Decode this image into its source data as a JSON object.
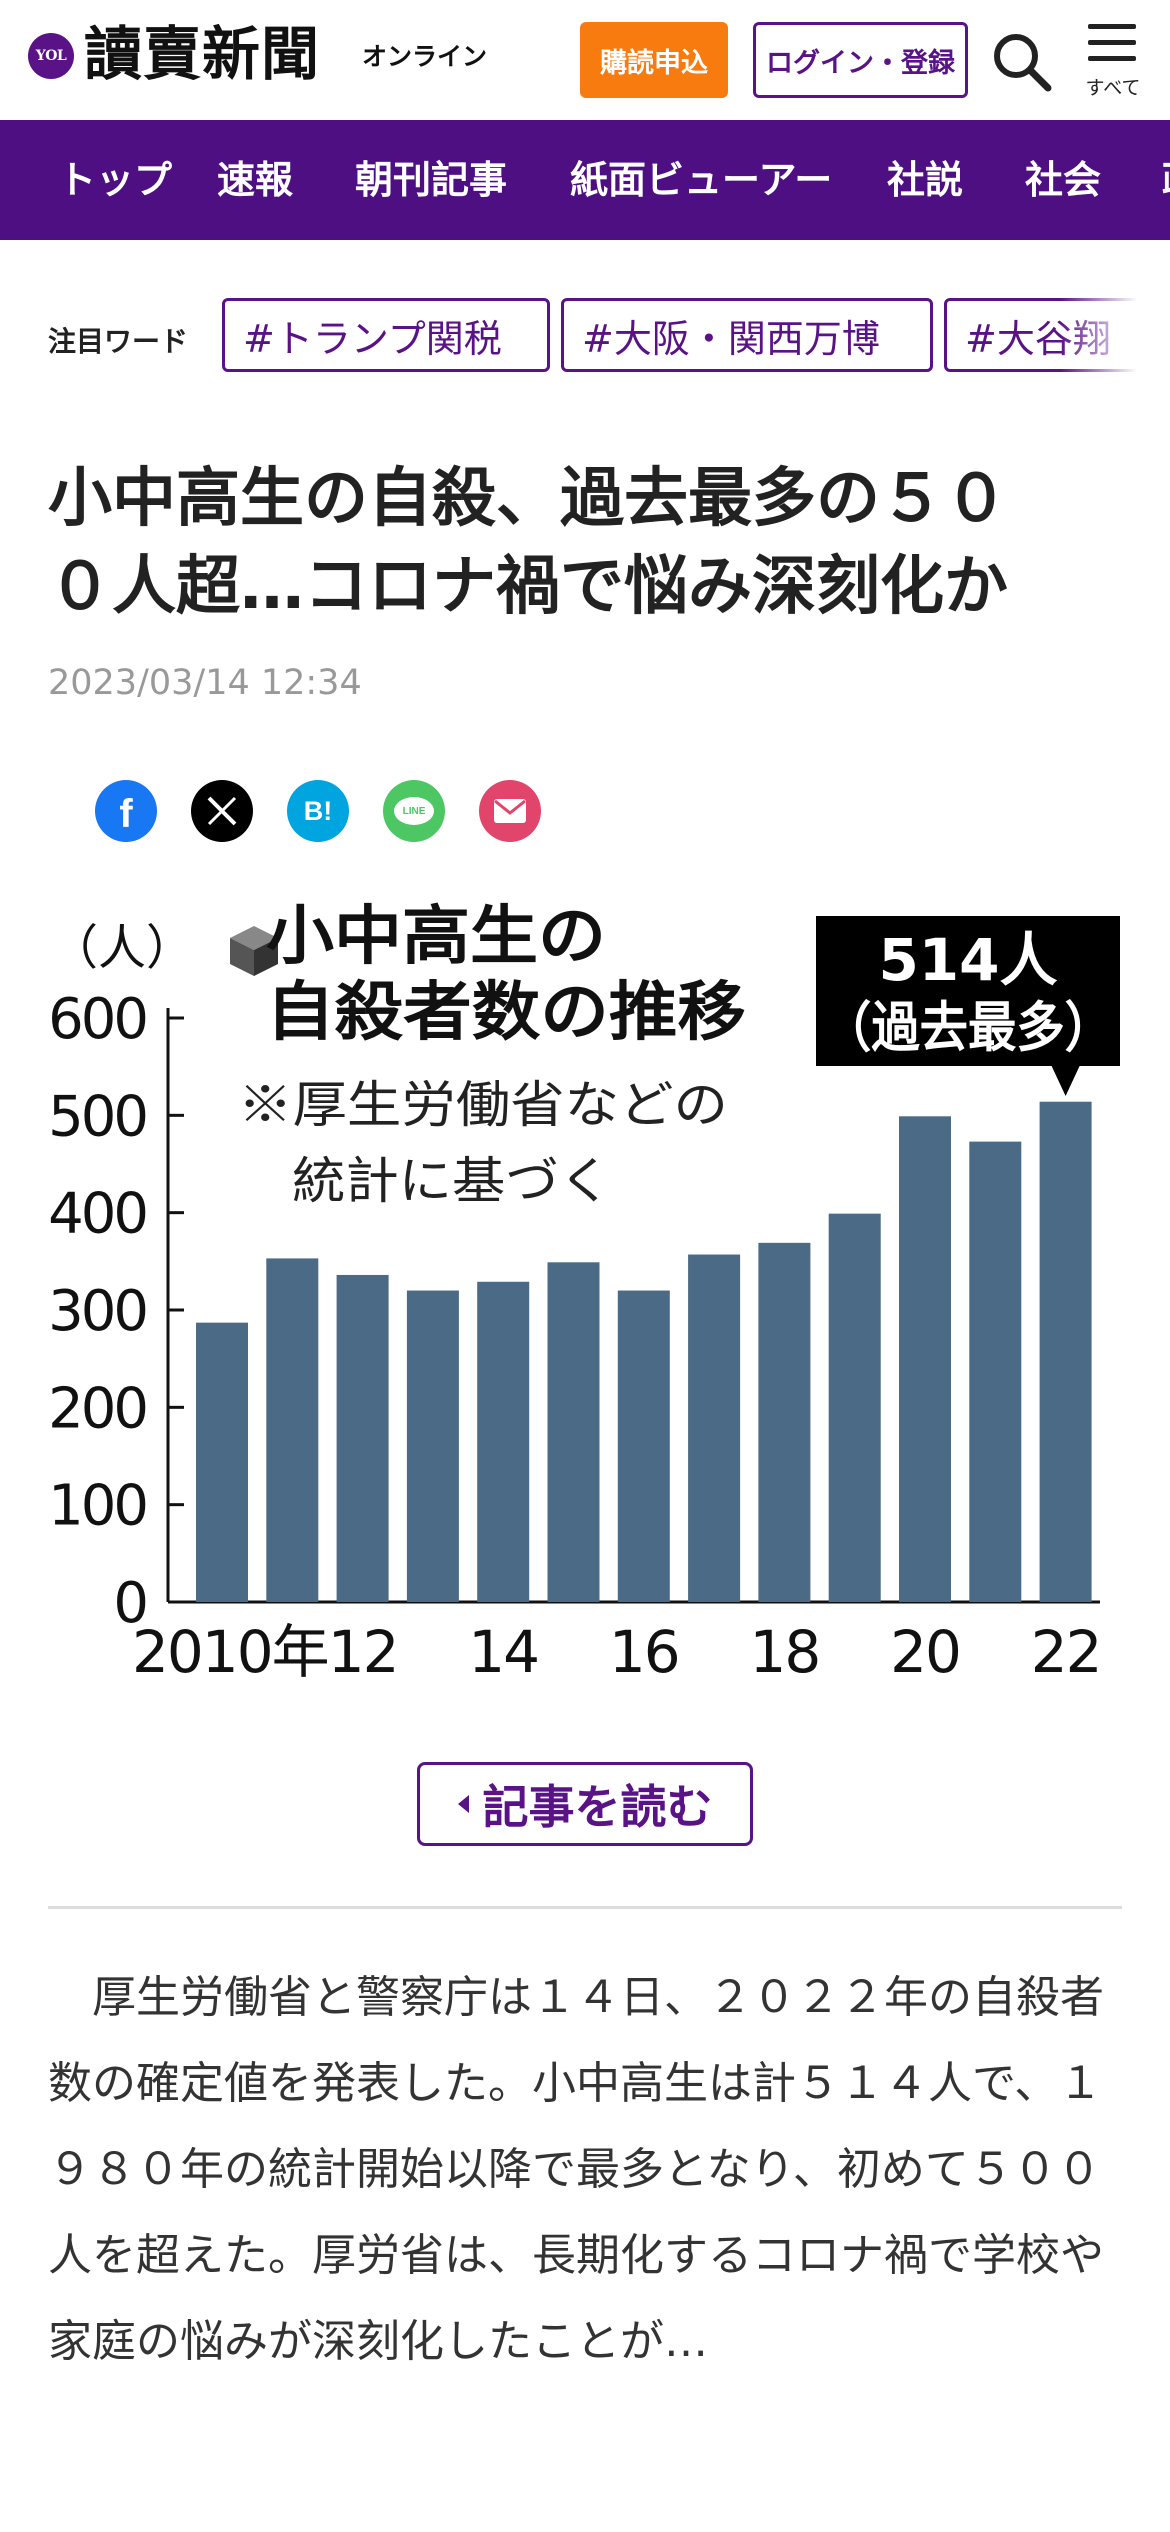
{
  "header": {
    "logo_mark": "YOL",
    "logo_text": "讀賣新聞",
    "logo_sub": "オンライン",
    "subscribe_label": "購読申込",
    "login_label": "ログイン・登録",
    "menu_label": "すべて"
  },
  "nav": {
    "items": [
      "トップ",
      "速報",
      "朝刊記事",
      "紙面ビューアー",
      "社説",
      "社会",
      "政"
    ]
  },
  "trending": {
    "label": "注目ワード",
    "tags": [
      "#トランプ関税",
      "#大阪・関西万博",
      "#大谷翔"
    ]
  },
  "article": {
    "headline_line1": "小中高生の自殺、過去最多の５０",
    "headline_line2": "０人超…コロナ禍で悩み深刻化か",
    "timestamp": "2023/03/14 12:34",
    "read_button": "記事を読む",
    "body": "　厚生労働省と警察庁は１４日、２０２２年の自殺者数の確定値を発表した。小中高生は計５１４人で、１９８０年の統計開始以降で最多となり、初めて５００人を超えた。厚労省は、長期化するコロナ禍で学校や家庭の悩みが深刻化したことが…"
  },
  "share": {
    "facebook": "f",
    "hatena": "B!",
    "line": "LINE"
  },
  "chart_data": {
    "type": "bar",
    "title": "小中高生の自殺者数の推移",
    "note_line1": "※厚生労働省などの",
    "note_line2": "統計に基づく",
    "unit_label": "（人）",
    "x": [
      2010,
      2011,
      2012,
      2013,
      2014,
      2015,
      2016,
      2017,
      2018,
      2019,
      2020,
      2021,
      2022
    ],
    "x_tick_labels": [
      "2010年",
      "12",
      "14",
      "16",
      "18",
      "20",
      "22"
    ],
    "values": [
      287,
      353,
      336,
      320,
      329,
      349,
      320,
      357,
      369,
      399,
      499,
      473,
      514
    ],
    "y_ticks": [
      "600",
      "500",
      "400",
      "300",
      "200",
      "100",
      "0"
    ],
    "ylim": [
      0,
      600
    ],
    "callout_value": "514人",
    "callout_note": "（過去最多）",
    "bar_color": "#4a6a85"
  }
}
